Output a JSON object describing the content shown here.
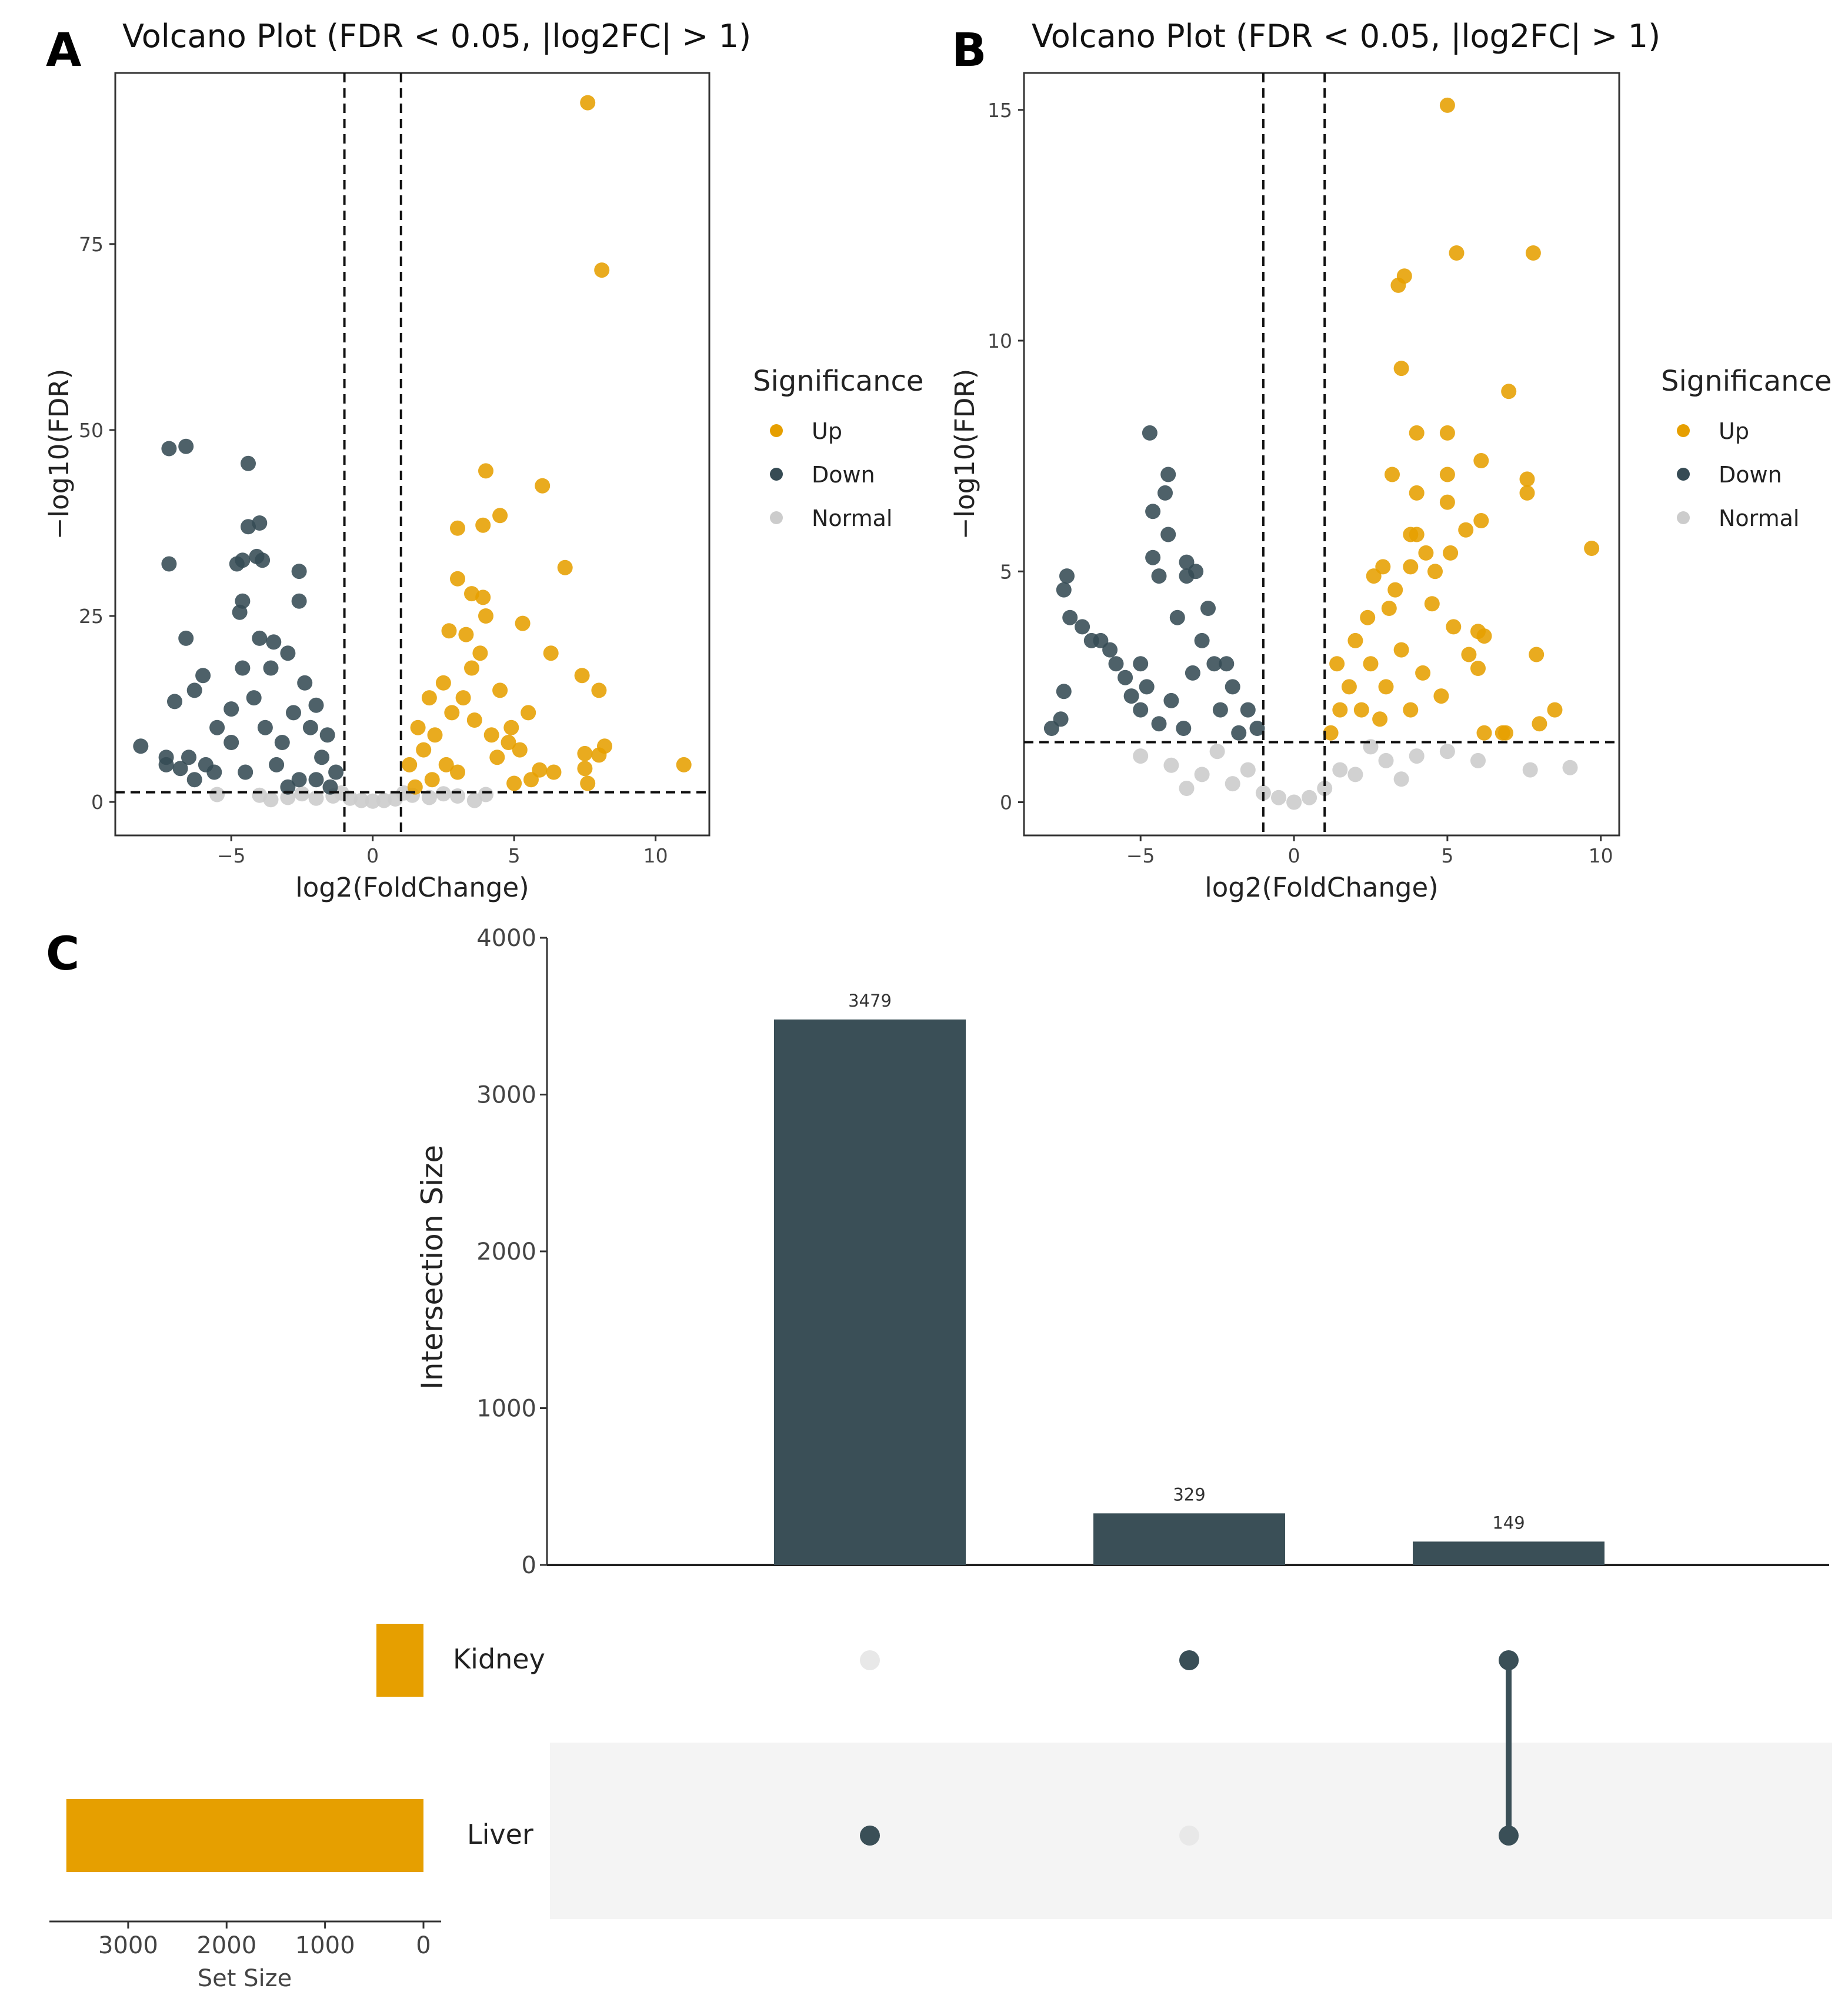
{
  "panels": {
    "a": "A",
    "b": "B",
    "c": "C"
  },
  "colors": {
    "up": "#E69F00",
    "down": "#364B54",
    "normal": "#CCCCCC",
    "bar": "#3A4F57",
    "setbar": "#E69F00",
    "dot_inactive": "#E8E8E8",
    "band": "#F4F4F4"
  },
  "legend": {
    "title": "Significance",
    "items": [
      "Up",
      "Down",
      "Normal"
    ]
  },
  "chart_data": [
    {
      "type": "scatter",
      "panel": "A",
      "title": "Volcano Plot (FDR < 0.05, |log2FC| > 1)",
      "xlabel": "log2(FoldChange)",
      "ylabel": "−log10(FDR)",
      "xlim": [
        -9.1,
        11.9
      ],
      "ylim": [
        -4.5,
        98
      ],
      "xticks": [
        -5,
        0,
        5,
        10
      ],
      "xtick_labels": [
        "−5",
        "0",
        "5",
        "10"
      ],
      "yticks": [
        0,
        25,
        50,
        75
      ],
      "ytick_labels": [
        "0",
        "25",
        "50",
        "75"
      ],
      "thresholds": {
        "x": [
          -1,
          1
        ],
        "y": 1.3
      },
      "series": [
        {
          "name": "Up",
          "points": [
            [
              7.6,
              94
            ],
            [
              8.1,
              71.5
            ],
            [
              4.0,
              44.5
            ],
            [
              6.0,
              42.5
            ],
            [
              4.5,
              38.5
            ],
            [
              3.0,
              36.8
            ],
            [
              3.9,
              37.2
            ],
            [
              6.8,
              31.5
            ],
            [
              3.0,
              30
            ],
            [
              3.5,
              28
            ],
            [
              3.9,
              27.5
            ],
            [
              4.0,
              25
            ],
            [
              5.3,
              24
            ],
            [
              2.7,
              23
            ],
            [
              3.3,
              22.5
            ],
            [
              6.3,
              20
            ],
            [
              7.4,
              17
            ],
            [
              8.0,
              15
            ],
            [
              8.2,
              7.5
            ],
            [
              8.0,
              6.3
            ],
            [
              7.5,
              6.5
            ],
            [
              7.5,
              4.5
            ],
            [
              7.6,
              2.5
            ],
            [
              6.4,
              4
            ],
            [
              5.9,
              4.3
            ],
            [
              5.6,
              3
            ],
            [
              5.0,
              2.5
            ],
            [
              11.0,
              5
            ],
            [
              4.8,
              8
            ],
            [
              5.5,
              12
            ],
            [
              4.5,
              15
            ],
            [
              3.8,
              20
            ],
            [
              3.5,
              18
            ],
            [
              2.5,
              16
            ],
            [
              2.0,
              14
            ],
            [
              1.6,
              10
            ],
            [
              1.3,
              5
            ],
            [
              1.8,
              7
            ],
            [
              2.2,
              9
            ],
            [
              2.8,
              12
            ],
            [
              3.2,
              14
            ],
            [
              3.6,
              11
            ],
            [
              4.2,
              9
            ],
            [
              2.6,
              5
            ],
            [
              3.0,
              4
            ],
            [
              2.1,
              3
            ],
            [
              1.5,
              2
            ],
            [
              4.4,
              6
            ],
            [
              4.9,
              10
            ],
            [
              5.2,
              7
            ]
          ]
        },
        {
          "name": "Down",
          "points": [
            [
              -7.2,
              47.5
            ],
            [
              -6.6,
              47.8
            ],
            [
              -4.4,
              45.5
            ],
            [
              -4.0,
              37.5
            ],
            [
              -4.4,
              37
            ],
            [
              -4.1,
              33
            ],
            [
              -3.9,
              32.5
            ],
            [
              -4.6,
              32.5
            ],
            [
              -4.8,
              32
            ],
            [
              -2.6,
              31
            ],
            [
              -7.2,
              32
            ],
            [
              -4.6,
              27
            ],
            [
              -2.6,
              27
            ],
            [
              -4.7,
              25.5
            ],
            [
              -6.6,
              22
            ],
            [
              -4.0,
              22
            ],
            [
              -3.5,
              21.5
            ],
            [
              -6.0,
              17
            ],
            [
              -6.3,
              15
            ],
            [
              -7.0,
              13.5
            ],
            [
              -5.0,
              12.5
            ],
            [
              -5.5,
              10
            ],
            [
              -6.5,
              6
            ],
            [
              -8.2,
              7.5
            ],
            [
              -7.3,
              6
            ],
            [
              -7.3,
              5
            ],
            [
              -6.8,
              4.5
            ],
            [
              -6.3,
              3
            ],
            [
              -5.9,
              5
            ],
            [
              -5.6,
              4
            ],
            [
              -3.0,
              20
            ],
            [
              -3.6,
              18
            ],
            [
              -2.4,
              16
            ],
            [
              -2.0,
              13
            ],
            [
              -1.6,
              9
            ],
            [
              -1.3,
              4
            ],
            [
              -1.8,
              6
            ],
            [
              -2.2,
              10
            ],
            [
              -2.8,
              12
            ],
            [
              -3.2,
              8
            ],
            [
              -3.8,
              10
            ],
            [
              -4.2,
              14
            ],
            [
              -4.6,
              18
            ],
            [
              -2.6,
              3
            ],
            [
              -3.4,
              5
            ],
            [
              -5.0,
              8
            ],
            [
              -4.5,
              4
            ],
            [
              -3.0,
              2
            ],
            [
              -1.5,
              2
            ],
            [
              -2.0,
              3
            ]
          ]
        },
        {
          "name": "Normal",
          "points": [
            [
              -5.5,
              1.0
            ],
            [
              -4.0,
              0.9
            ],
            [
              -3.0,
              0.6
            ],
            [
              -2.0,
              0.5
            ],
            [
              -1.4,
              0.8
            ],
            [
              -0.8,
              0.5
            ],
            [
              -0.4,
              0.2
            ],
            [
              0.0,
              0.1
            ],
            [
              0.4,
              0.2
            ],
            [
              0.8,
              0.4
            ],
            [
              1.4,
              0.9
            ],
            [
              2.0,
              0.6
            ],
            [
              3.0,
              0.8
            ],
            [
              4.0,
              1.0
            ],
            [
              3.6,
              0.2
            ],
            [
              -3.6,
              0.3
            ],
            [
              -2.5,
              1.1
            ],
            [
              2.5,
              1.1
            ],
            [
              -1.1,
              1.2
            ],
            [
              1.1,
              1.2
            ]
          ]
        }
      ]
    },
    {
      "type": "scatter",
      "panel": "B",
      "title": "Volcano Plot (FDR < 0.05, |log2FC| > 1)",
      "xlabel": "log2(FoldChange)",
      "ylabel": "−log10(FDR)",
      "xlim": [
        -8.8,
        10.6
      ],
      "ylim": [
        -0.72,
        15.8
      ],
      "xticks": [
        -5,
        0,
        5,
        10
      ],
      "xtick_labels": [
        "−5",
        "0",
        "5",
        "10"
      ],
      "yticks": [
        0,
        5,
        10,
        15
      ],
      "ytick_labels": [
        "0",
        "5",
        "10",
        "15"
      ],
      "thresholds": {
        "x": [
          -1,
          1
        ],
        "y": 1.3
      },
      "series": [
        {
          "name": "Up",
          "points": [
            [
              5.0,
              15.1
            ],
            [
              5.3,
              11.9
            ],
            [
              7.8,
              11.9
            ],
            [
              3.6,
              11.4
            ],
            [
              3.4,
              11.2
            ],
            [
              3.5,
              9.4
            ],
            [
              7.0,
              8.9
            ],
            [
              4.0,
              8.0
            ],
            [
              5.0,
              8.0
            ],
            [
              6.1,
              7.4
            ],
            [
              3.2,
              7.1
            ],
            [
              5.0,
              7.1
            ],
            [
              7.6,
              7.0
            ],
            [
              7.6,
              6.7
            ],
            [
              4.0,
              6.7
            ],
            [
              5.0,
              6.5
            ],
            [
              9.7,
              5.5
            ],
            [
              5.6,
              5.9
            ],
            [
              6.1,
              6.1
            ],
            [
              4.0,
              5.8
            ],
            [
              3.8,
              5.8
            ],
            [
              4.3,
              5.4
            ],
            [
              5.1,
              5.4
            ],
            [
              3.8,
              5.1
            ],
            [
              2.9,
              5.1
            ],
            [
              4.6,
              5.0
            ],
            [
              2.6,
              4.9
            ],
            [
              3.3,
              4.6
            ],
            [
              4.5,
              4.3
            ],
            [
              3.1,
              4.2
            ],
            [
              6.0,
              3.7
            ],
            [
              6.2,
              3.6
            ],
            [
              6.0,
              2.9
            ],
            [
              5.7,
              3.2
            ],
            [
              7.9,
              3.2
            ],
            [
              8.5,
              2.0
            ],
            [
              8.0,
              1.7
            ],
            [
              6.8,
              1.5
            ],
            [
              6.9,
              1.5
            ],
            [
              6.2,
              1.5
            ],
            [
              2.0,
              3.5
            ],
            [
              2.5,
              3.0
            ],
            [
              3.0,
              2.5
            ],
            [
              1.5,
              2.0
            ],
            [
              1.2,
              1.5
            ],
            [
              1.8,
              2.5
            ],
            [
              2.2,
              2.0
            ],
            [
              3.5,
              3.3
            ],
            [
              4.2,
              2.8
            ],
            [
              4.8,
              2.3
            ],
            [
              2.8,
              1.8
            ],
            [
              3.8,
              2.0
            ],
            [
              1.4,
              3.0
            ],
            [
              2.4,
              4.0
            ],
            [
              5.2,
              3.8
            ]
          ]
        },
        {
          "name": "Down",
          "points": [
            [
              -4.7,
              8.0
            ],
            [
              -4.1,
              7.1
            ],
            [
              -4.2,
              6.7
            ],
            [
              -4.6,
              6.3
            ],
            [
              -4.1,
              5.8
            ],
            [
              -7.4,
              4.9
            ],
            [
              -7.5,
              4.6
            ],
            [
              -4.6,
              5.3
            ],
            [
              -3.5,
              5.2
            ],
            [
              -3.2,
              5.0
            ],
            [
              -4.4,
              4.9
            ],
            [
              -3.5,
              4.9
            ],
            [
              -7.3,
              4.0
            ],
            [
              -6.9,
              3.8
            ],
            [
              -6.6,
              3.5
            ],
            [
              -6.3,
              3.5
            ],
            [
              -6.0,
              3.3
            ],
            [
              -5.8,
              3.0
            ],
            [
              -5.5,
              2.7
            ],
            [
              -5.3,
              2.3
            ],
            [
              -5.0,
              2.0
            ],
            [
              -7.6,
              1.8
            ],
            [
              -7.5,
              2.4
            ],
            [
              -7.9,
              1.6
            ],
            [
              -5.0,
              3.0
            ],
            [
              -4.8,
              2.5
            ],
            [
              -3.0,
              3.5
            ],
            [
              -2.6,
              3.0
            ],
            [
              -2.0,
              2.5
            ],
            [
              -1.5,
              2.0
            ],
            [
              -1.2,
              1.6
            ],
            [
              -1.8,
              1.5
            ],
            [
              -2.4,
              2.0
            ],
            [
              -3.3,
              2.8
            ],
            [
              -3.8,
              4.0
            ],
            [
              -4.0,
              2.2
            ],
            [
              -3.6,
              1.6
            ],
            [
              -4.4,
              1.7
            ],
            [
              -2.8,
              4.2
            ],
            [
              -2.2,
              3.0
            ]
          ]
        },
        {
          "name": "Normal",
          "points": [
            [
              -5.0,
              1.0
            ],
            [
              -4.0,
              0.8
            ],
            [
              -3.0,
              0.6
            ],
            [
              -2.0,
              0.4
            ],
            [
              -1.0,
              0.2
            ],
            [
              -0.5,
              0.1
            ],
            [
              0.0,
              0.0
            ],
            [
              0.5,
              0.1
            ],
            [
              1.0,
              0.3
            ],
            [
              2.0,
              0.6
            ],
            [
              3.0,
              0.9
            ],
            [
              4.0,
              1.0
            ],
            [
              5.0,
              1.1
            ],
            [
              6.0,
              0.9
            ],
            [
              7.7,
              0.7
            ],
            [
              9.0,
              0.75
            ],
            [
              -3.5,
              0.3
            ],
            [
              3.5,
              0.5
            ],
            [
              -2.5,
              1.1
            ],
            [
              2.5,
              1.2
            ],
            [
              -1.5,
              0.7
            ],
            [
              1.5,
              0.7
            ]
          ]
        }
      ]
    },
    {
      "type": "upset",
      "panel": "C",
      "ylabel": "Intersection Size",
      "xlabel_sets": "Set Size",
      "yticks": [
        0,
        1000,
        2000,
        3000,
        4000
      ],
      "ylim": [
        0,
        4000
      ],
      "sets": [
        "Kidney",
        "Liver"
      ],
      "set_sizes": [
        478,
        3628
      ],
      "set_ticks": [
        3000,
        2000,
        1000,
        0
      ],
      "set_xlim": [
        3800,
        0
      ],
      "intersections": [
        {
          "members": [
            "Liver"
          ],
          "size": 3479,
          "label": "3479"
        },
        {
          "members": [
            "Kidney"
          ],
          "size": 329,
          "label": "329"
        },
        {
          "members": [
            "Kidney",
            "Liver"
          ],
          "size": 149,
          "label": "149"
        }
      ]
    }
  ]
}
